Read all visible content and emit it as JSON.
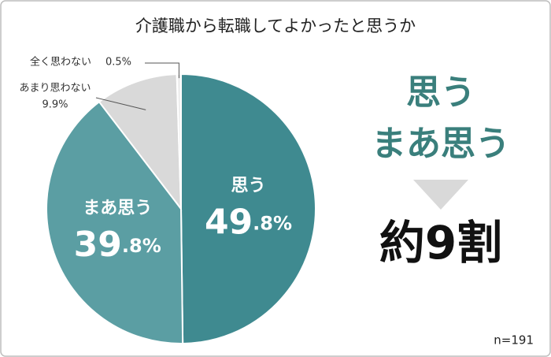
{
  "chart_data": {
    "type": "pie",
    "title": "介護職から転職してよかったと思うか",
    "categories": [
      "思う",
      "まあ思う",
      "あまり思わない",
      "全く思わない"
    ],
    "values": [
      49.8,
      39.8,
      9.9,
      0.5
    ],
    "value_labels": [
      "49.8%",
      "39.8%",
      "9.9%",
      "0.5%"
    ],
    "colors": [
      "#3f8a90",
      "#5b9ea3",
      "#d9d9d9",
      "#eeeeee"
    ],
    "summary_lines": [
      "思う",
      "まあ思う"
    ],
    "summary_color": "#3a7f7c",
    "result": "約9割",
    "sample": "n=191"
  }
}
